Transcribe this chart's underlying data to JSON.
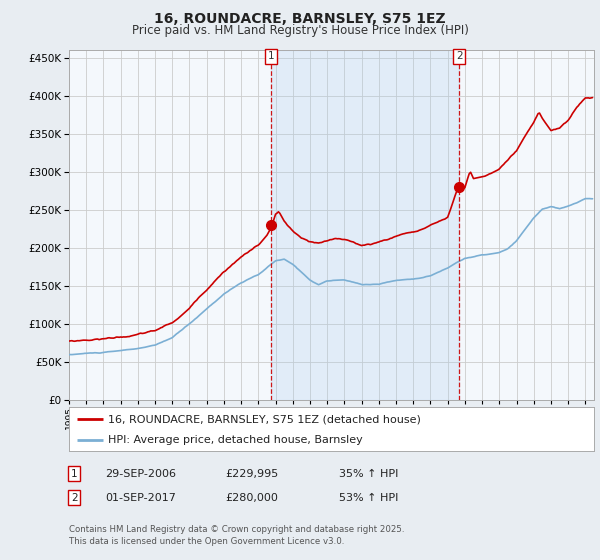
{
  "title": "16, ROUNDACRE, BARNSLEY, S75 1EZ",
  "subtitle": "Price paid vs. HM Land Registry's House Price Index (HPI)",
  "ytick_values": [
    0,
    50000,
    100000,
    150000,
    200000,
    250000,
    300000,
    350000,
    400000,
    450000
  ],
  "ylim": [
    0,
    460000
  ],
  "xlim_start": 1995.0,
  "xlim_end": 2025.5,
  "red_color": "#cc0000",
  "blue_color": "#7bafd4",
  "blue_fill_color": "#ddeeff",
  "marker1_date": 2006.75,
  "marker1_price": 229995,
  "marker1_label": "1",
  "marker2_date": 2017.67,
  "marker2_price": 280000,
  "marker2_label": "2",
  "background_color": "#f0f4f8",
  "plot_bg_color": "#f8f8f8",
  "grid_color": "#cccccc",
  "legend_label_red": "16, ROUNDACRE, BARNSLEY, S75 1EZ (detached house)",
  "legend_label_blue": "HPI: Average price, detached house, Barnsley",
  "footer": "Contains HM Land Registry data © Crown copyright and database right 2025.\nThis data is licensed under the Open Government Licence v3.0.",
  "title_fontsize": 10,
  "subtitle_fontsize": 8.5,
  "tick_fontsize": 7.5,
  "legend_fontsize": 8
}
